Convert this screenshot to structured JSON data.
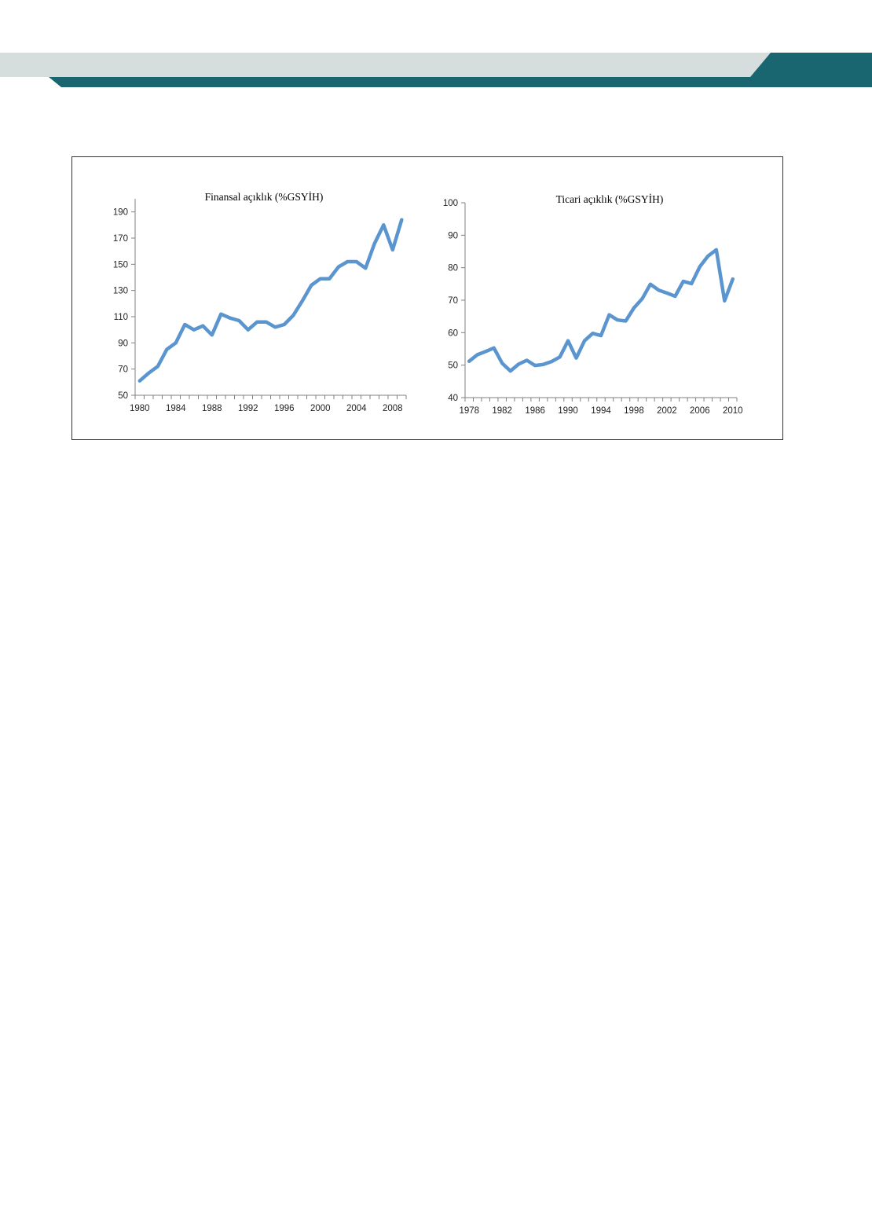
{
  "colors": {
    "header_light": "#d5dedd",
    "header_dark": "#1a6670",
    "series": "#5b95cf",
    "axis": "#808080"
  },
  "chart_data": [
    {
      "type": "line",
      "title": "Finansal açıklık (%GSYİH)",
      "xlabel": "",
      "ylabel": "",
      "xlim": [
        1979.5,
        2009.5
      ],
      "ylim": [
        50,
        200
      ],
      "yticks": [
        50,
        70,
        90,
        110,
        130,
        150,
        170,
        190
      ],
      "xticks": [
        1980,
        1984,
        1988,
        1992,
        1996,
        2000,
        2004,
        2008
      ],
      "grid": false,
      "series": [
        {
          "x": [
            1980,
            1981,
            1982,
            1983,
            1984,
            1985,
            1986,
            1987,
            1988,
            1989,
            1990,
            1991,
            1992,
            1993,
            1994,
            1995,
            1996,
            1997,
            1998,
            1999,
            2000,
            2001,
            2002,
            2003,
            2004,
            2005,
            2006,
            2007,
            2008,
            2009
          ],
          "values": [
            61,
            67,
            72,
            85,
            90,
            104,
            100,
            103,
            96,
            112,
            109,
            107,
            100,
            106,
            106,
            102,
            104,
            111,
            122,
            134,
            139,
            139,
            148,
            152,
            152,
            147,
            166,
            180,
            161,
            184
          ]
        }
      ]
    },
    {
      "type": "line",
      "title": "Ticari açıklık (%GSYİH)",
      "xlabel": "",
      "ylabel": "",
      "xlim": [
        1977.5,
        2010.5
      ],
      "ylim": [
        40,
        100
      ],
      "yticks": [
        40,
        50,
        60,
        70,
        80,
        90,
        100
      ],
      "xticks": [
        1978,
        1982,
        1986,
        1990,
        1994,
        1998,
        2002,
        2006,
        2010
      ],
      "grid": false,
      "series": [
        {
          "x": [
            1978,
            1979,
            1980,
            1981,
            1982,
            1983,
            1984,
            1985,
            1986,
            1987,
            1988,
            1989,
            1990,
            1991,
            1992,
            1993,
            1994,
            1995,
            1996,
            1997,
            1998,
            1999,
            2000,
            2001,
            2002,
            2003,
            2004,
            2005,
            2006,
            2007,
            2008,
            2009,
            2010
          ],
          "values": [
            51.2,
            53.2,
            54.2,
            55.3,
            50.6,
            48.2,
            50.3,
            51.5,
            49.9,
            50.2,
            51.1,
            52.5,
            57.5,
            52.2,
            57.5,
            59.8,
            59.1,
            65.5,
            63.9,
            63.6,
            67.6,
            70.4,
            74.9,
            73.1,
            72.2,
            71.2,
            75.8,
            75.1,
            80.3,
            83.6,
            85.5,
            69.8,
            76.5
          ]
        }
      ]
    }
  ]
}
